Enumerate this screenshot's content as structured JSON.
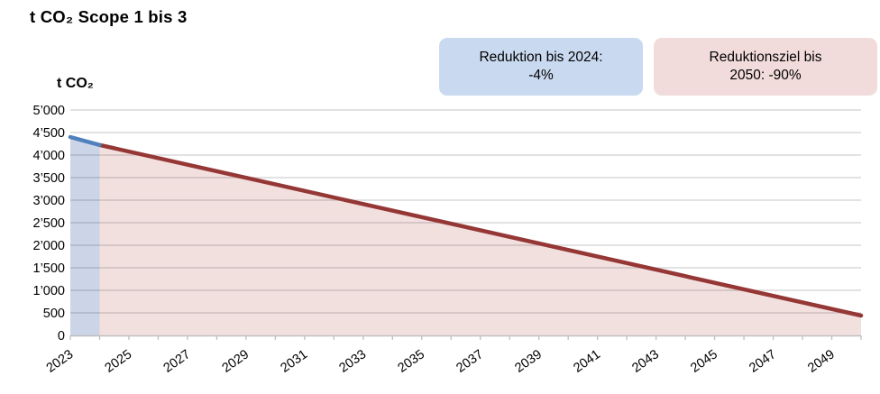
{
  "header": {
    "title": "t CO₂ Scope 1 bis 3"
  },
  "colors": {
    "blue_line": "#4f81bd",
    "blue_area": "#ccd4e8",
    "red_line": "#953735",
    "red_area": "#f2e0df",
    "callout_blue_bg": "#c9d9f0",
    "callout_pink_bg": "#f2dcdb",
    "gridline": "#d9d9d9",
    "axis": "#bfbfbf"
  },
  "callouts": [
    {
      "id": "reduction-2024",
      "lines": [
        "Reduktion bis 2024:",
        "-4%"
      ]
    },
    {
      "id": "target-2050",
      "lines": [
        "Reduktionsziel bis",
        "2050: -90%"
      ]
    }
  ],
  "chart_data": {
    "type": "area",
    "title": "t CO₂ Scope 1 bis 3",
    "ylabel": "t CO₂",
    "xlabel": "",
    "ylim": [
      0,
      5000
    ],
    "ytick_step": 500,
    "ytick_labels": [
      "0",
      "500",
      "1’000",
      "1’500",
      "2’000",
      "2’500",
      "3’000",
      "3’500",
      "4’000",
      "4’500",
      "5’000"
    ],
    "x_range": [
      2023,
      2050
    ],
    "xtick_every_year": true,
    "xtick_labels": [
      "2023",
      "2025",
      "2027",
      "2029",
      "2031",
      "2033",
      "2035",
      "2037",
      "2039",
      "2041",
      "2043",
      "2045",
      "2047",
      "2049"
    ],
    "grid": "horizontal",
    "legend_position": "none",
    "series": [
      {
        "name": "Reduktion bis 2024: -4%",
        "color": "#4f81bd",
        "fill": "#ccd4e8",
        "points": [
          {
            "x": 2023,
            "y": 4400
          },
          {
            "x": 2024,
            "y": 4224
          }
        ]
      },
      {
        "name": "Reduktionsziel bis 2050: -90%",
        "color": "#953735",
        "fill": "#f2e0df",
        "points": [
          {
            "x": 2024,
            "y": 4224
          },
          {
            "x": 2050,
            "y": 440
          }
        ]
      }
    ],
    "annotations": [
      {
        "text": "Reduktion bis 2024: -4%"
      },
      {
        "text": "Reduktionsziel bis 2050: -90%"
      }
    ]
  }
}
